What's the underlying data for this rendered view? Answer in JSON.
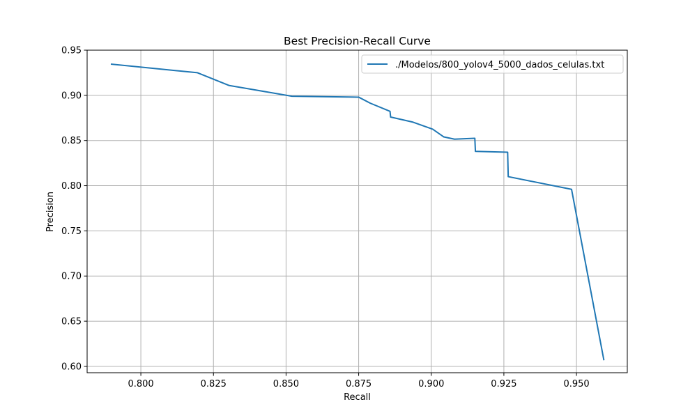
{
  "chart_data": {
    "type": "line",
    "title": "Best Precision-Recall Curve",
    "xlabel": "Recall",
    "ylabel": "Precision",
    "xlim": [
      0.7815,
      0.9675
    ],
    "ylim": [
      0.593,
      0.95
    ],
    "xticks": [
      0.8,
      0.825,
      0.85,
      0.875,
      0.9,
      0.925,
      0.95
    ],
    "xtick_labels": [
      "0.800",
      "0.825",
      "0.850",
      "0.875",
      "0.900",
      "0.925",
      "0.950"
    ],
    "yticks": [
      0.6,
      0.65,
      0.7,
      0.75,
      0.8,
      0.85,
      0.9,
      0.95
    ],
    "ytick_labels": [
      "0.60",
      "0.65",
      "0.70",
      "0.75",
      "0.80",
      "0.85",
      "0.90",
      "0.95"
    ],
    "grid": true,
    "legend_position": "upper right",
    "series": [
      {
        "name": "./Modelos/800_yolov4_5000_dados_celulas.txt",
        "color": "#1f77b4",
        "x": [
          0.7899,
          0.8195,
          0.8303,
          0.852,
          0.875,
          0.879,
          0.8858,
          0.886,
          0.8935,
          0.9005,
          0.9043,
          0.908,
          0.915,
          0.9152,
          0.9263,
          0.9265,
          0.9483,
          0.9594
        ],
        "y": [
          0.9345,
          0.925,
          0.911,
          0.899,
          0.898,
          0.8913,
          0.8823,
          0.876,
          0.8705,
          0.8625,
          0.854,
          0.8515,
          0.8525,
          0.838,
          0.837,
          0.81,
          0.796,
          0.6075
        ]
      }
    ]
  }
}
